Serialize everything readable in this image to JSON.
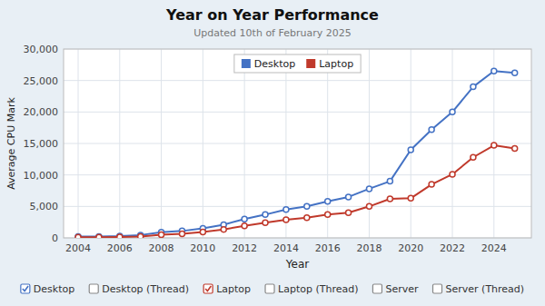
{
  "chart_data": {
    "type": "line",
    "title": "Year on Year Performance",
    "subtitle": "Updated 10th of February 2025",
    "xlabel": "Year",
    "ylabel": "Average CPU Mark",
    "x": [
      2004,
      2005,
      2006,
      2007,
      2008,
      2009,
      2010,
      2011,
      2012,
      2013,
      2014,
      2015,
      2016,
      2017,
      2018,
      2019,
      2020,
      2021,
      2022,
      2023,
      2024,
      2025
    ],
    "series": [
      {
        "name": "Desktop",
        "color": "#4472c4",
        "marker": "circle",
        "values": [
          200,
          220,
          280,
          450,
          900,
          1100,
          1500,
          2100,
          3000,
          3700,
          4500,
          5000,
          5800,
          6500,
          7800,
          9000,
          14000,
          17200,
          20000,
          24000,
          26500,
          26200
        ]
      },
      {
        "name": "Laptop",
        "color": "#c0392b",
        "marker": "circle",
        "values": [
          100,
          115,
          140,
          220,
          500,
          650,
          950,
          1350,
          1900,
          2400,
          2900,
          3200,
          3700,
          4000,
          5000,
          6200,
          6300,
          8500,
          10100,
          12800,
          14700,
          14200
        ]
      }
    ],
    "xlim": [
      2003.3,
      2025.8
    ],
    "xticks": [
      2004,
      2006,
      2008,
      2010,
      2012,
      2014,
      2016,
      2018,
      2020,
      2022,
      2024
    ],
    "ylim": [
      0,
      30000
    ],
    "yticks": [
      0,
      {
        "value": 5000,
        "label": "5,000"
      },
      {
        "value": 10000,
        "label": "10,000"
      },
      {
        "value": 15000,
        "label": "15,000"
      },
      {
        "value": 20000,
        "label": "20,000"
      },
      {
        "value": 25000,
        "label": "25,000"
      },
      {
        "value": 30000,
        "label": "30,000"
      }
    ],
    "grid": true,
    "legend": "upper center",
    "annotations": [
      {
        "text": "Desktop",
        "color": "#4472c4",
        "checked": true
      },
      {
        "text": "Desktop (Thread)",
        "color": "#888888",
        "checked": false
      },
      {
        "text": "Laptop",
        "color": "#c0392b",
        "checked": true
      },
      {
        "text": "Laptop (Thread)",
        "color": "#888888",
        "checked": false
      },
      {
        "text": "Server",
        "color": "#888888",
        "checked": false
      },
      {
        "text": "Server (Thread)",
        "color": "#888888",
        "checked": false
      }
    ]
  }
}
